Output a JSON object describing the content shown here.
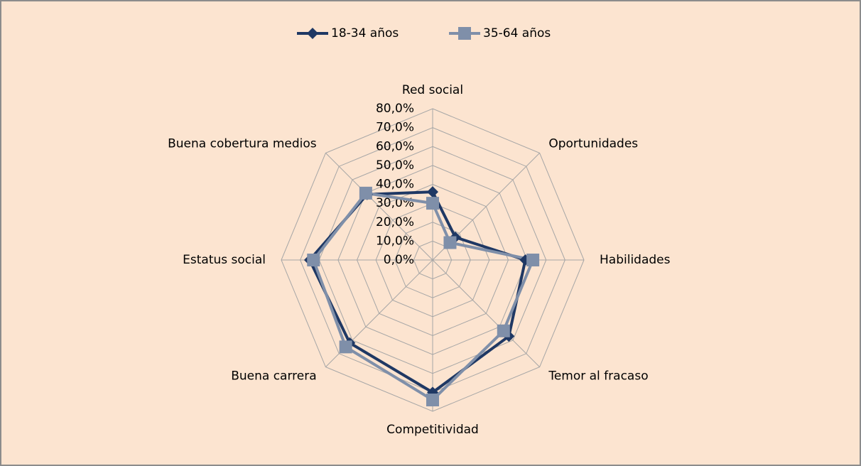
{
  "chart_data": {
    "type": "radar",
    "categories": [
      "Red social",
      "Oportunidades",
      "Habilidades",
      "Temor al fracaso",
      "Competitividad",
      "Buena carrera",
      "Estatus social",
      "Buena cobertura medios"
    ],
    "series": [
      {
        "name": "18-34 años",
        "color": "#1f3864",
        "marker": "diamond",
        "values": [
          36,
          17,
          49,
          57,
          70,
          62,
          65,
          49
        ]
      },
      {
        "name": "35-64 años",
        "color": "#7f8fa9",
        "marker": "square",
        "values": [
          30,
          13,
          53,
          53,
          74,
          65,
          63,
          50
        ]
      }
    ],
    "ylim": [
      0,
      80
    ],
    "yticks": [
      {
        "value": 0,
        "label": "0,0%"
      },
      {
        "value": 10,
        "label": "10,0%"
      },
      {
        "value": 20,
        "label": "20,0%"
      },
      {
        "value": 30,
        "label": "30,0%"
      },
      {
        "value": 40,
        "label": "40,0%"
      },
      {
        "value": 50,
        "label": "50,0%"
      },
      {
        "value": 60,
        "label": "60,0%"
      },
      {
        "value": 70,
        "label": "70,0%"
      },
      {
        "value": 80,
        "label": "80,0%"
      }
    ],
    "grid": true,
    "legend": "top"
  }
}
